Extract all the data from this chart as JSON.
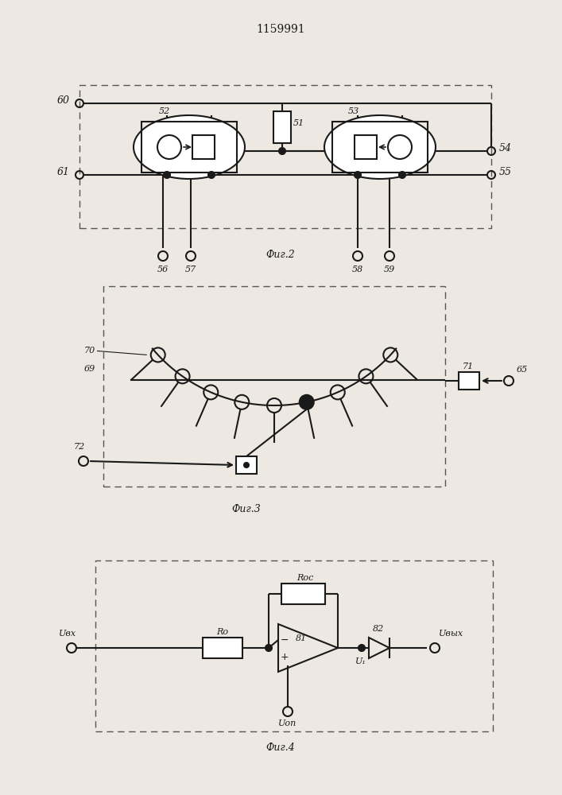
{
  "title": "1159991",
  "fig2_label": "Фиг.2",
  "fig3_label": "Фиг.3",
  "fig4_label": "Фиг.4",
  "bg_color": "#ede9e2",
  "line_color": "#1a1a1a"
}
